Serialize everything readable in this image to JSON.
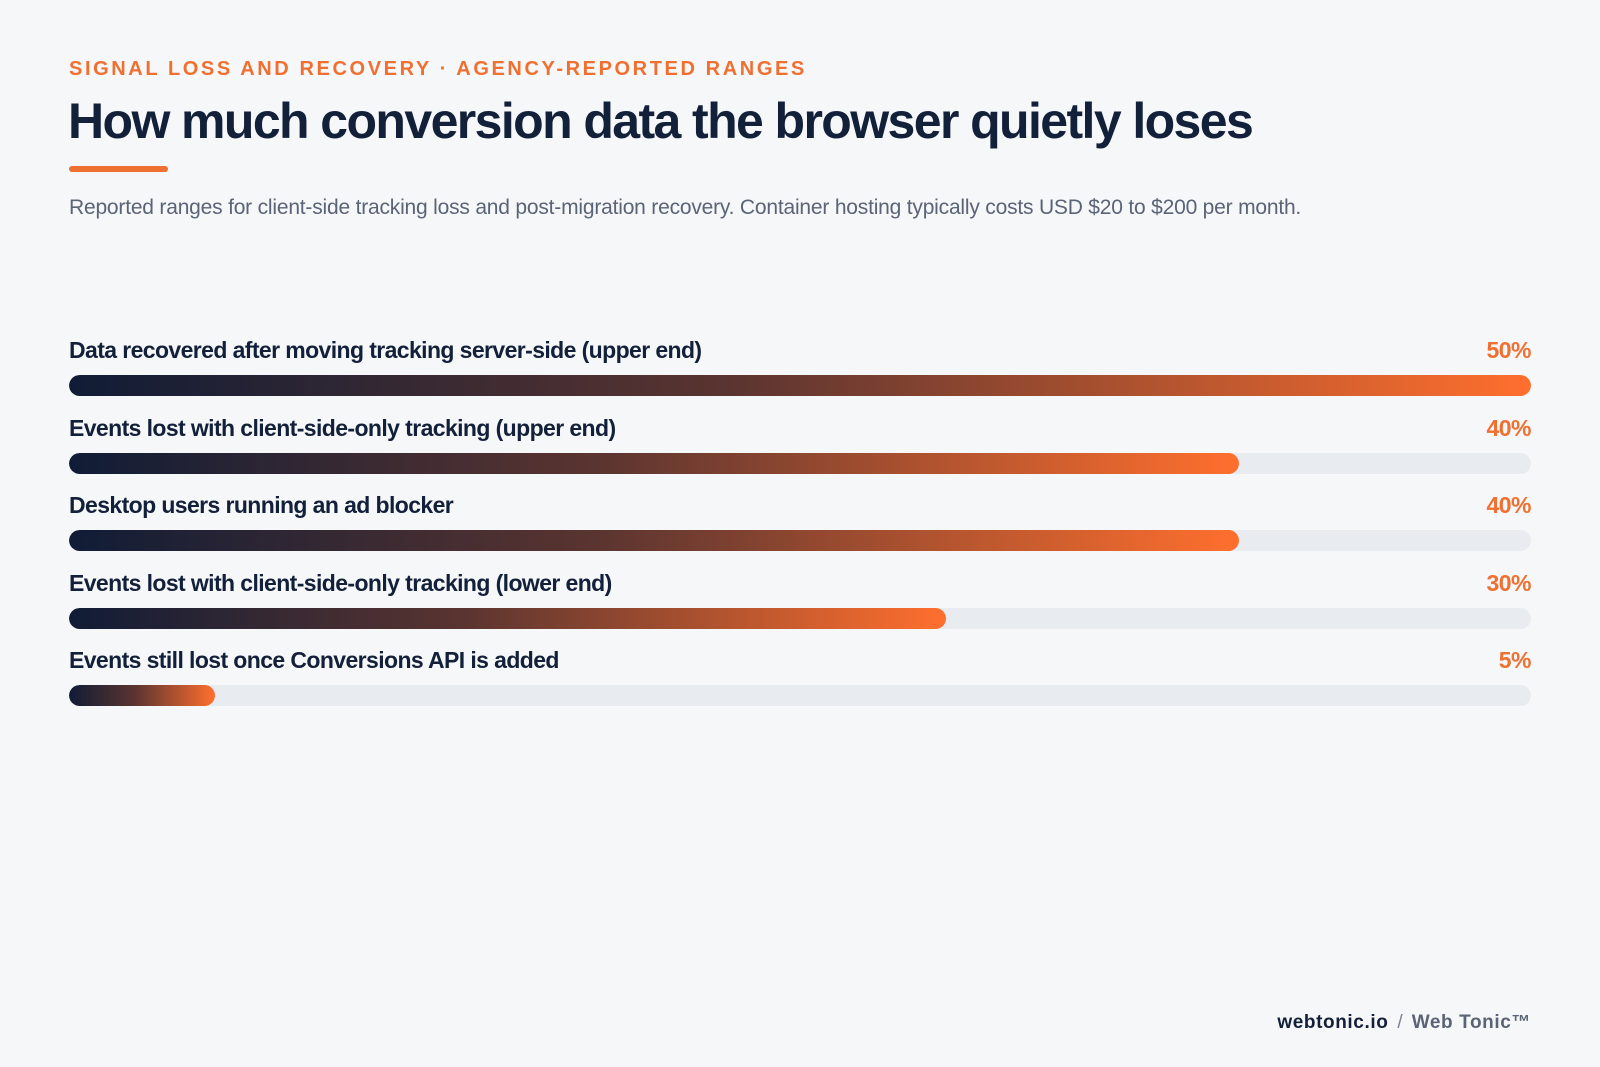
{
  "header": {
    "eyebrow": "SIGNAL LOSS AND RECOVERY · AGENCY-REPORTED RANGES",
    "title": "How much conversion data the browser quietly loses",
    "subtitle": "Reported ranges for client-side tracking loss and post-migration recovery. Container hosting typically costs USD $20 to $200 per month."
  },
  "colors": {
    "accent": "#ef7031",
    "navy": "#13203a",
    "track": "#e8ebef",
    "bar_gradient_start": "#101c36",
    "bar_gradient_end": "#ff6f2e",
    "background": "#f6f7f9"
  },
  "chart_data": {
    "type": "bar",
    "orientation": "horizontal",
    "xlim": [
      0,
      50
    ],
    "grid": false,
    "categories": [
      "Data recovered after moving tracking server-side (upper end)",
      "Events lost with client-side-only tracking (upper end)",
      "Desktop users running an ad blocker",
      "Events lost with client-side-only tracking (lower end)",
      "Events still lost once Conversions API is added"
    ],
    "values": [
      50,
      40,
      40,
      30,
      5
    ],
    "value_labels": [
      "50%",
      "40%",
      "40%",
      "30%",
      "5%"
    ]
  },
  "footer": {
    "site": "webtonic.io",
    "separator": "/",
    "brand": "Web Tonic™"
  }
}
